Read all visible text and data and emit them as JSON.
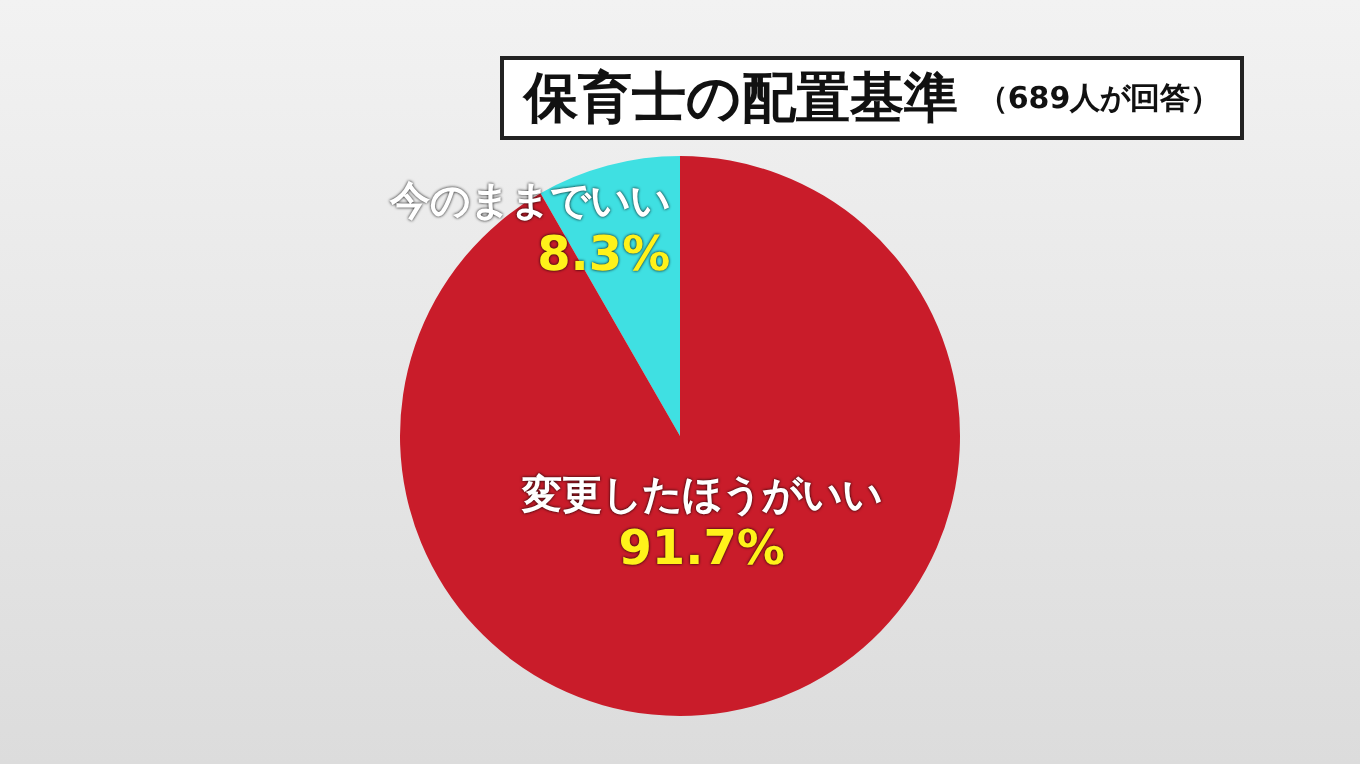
{
  "chart_data": {
    "type": "pie",
    "title": "保育士の配置基準",
    "subtitle": "（689人が回答）",
    "categories": [
      "今のままでいい",
      "変更したほうがいい"
    ],
    "values": [
      8.3,
      91.7
    ],
    "colors": [
      "#3fe0e2",
      "#c91c2a"
    ],
    "value_labels": [
      "8.3%",
      "91.7%"
    ],
    "legend": false
  }
}
